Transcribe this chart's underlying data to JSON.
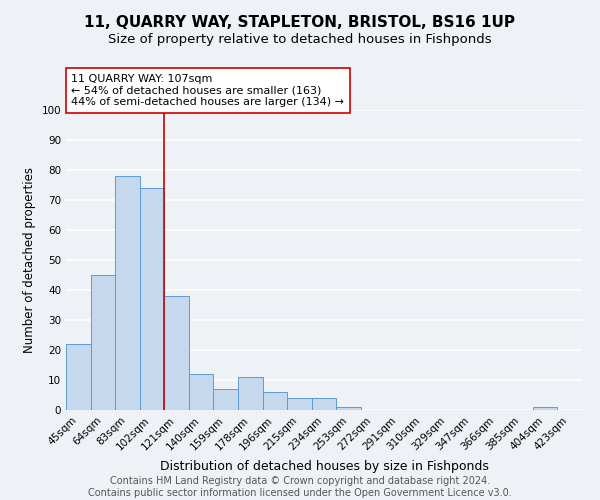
{
  "title1": "11, QUARRY WAY, STAPLETON, BRISTOL, BS16 1UP",
  "title2": "Size of property relative to detached houses in Fishponds",
  "xlabel": "Distribution of detached houses by size in Fishponds",
  "ylabel": "Number of detached properties",
  "bar_values": [
    22,
    45,
    78,
    74,
    38,
    12,
    7,
    11,
    6,
    4,
    4,
    1,
    0,
    0,
    0,
    0,
    0,
    0,
    0,
    1,
    0
  ],
  "bar_labels": [
    "45sqm",
    "64sqm",
    "83sqm",
    "102sqm",
    "121sqm",
    "140sqm",
    "159sqm",
    "178sqm",
    "196sqm",
    "215sqm",
    "234sqm",
    "253sqm",
    "272sqm",
    "291sqm",
    "310sqm",
    "329sqm",
    "347sqm",
    "366sqm",
    "385sqm",
    "404sqm",
    "423sqm"
  ],
  "bar_color": "#c5d8ed",
  "bar_edge_color": "#5b9bd5",
  "vline_index": 3,
  "vertical_line_color": "#cc0000",
  "annotation_line1": "11 QUARRY WAY: 107sqm",
  "annotation_line2": "← 54% of detached houses are smaller (163)",
  "annotation_line3": "44% of semi-detached houses are larger (134) →",
  "annotation_box_color": "white",
  "annotation_box_edge_color": "#cc0000",
  "ylim": [
    0,
    100
  ],
  "yticks": [
    0,
    10,
    20,
    30,
    40,
    50,
    60,
    70,
    80,
    90,
    100
  ],
  "footer_text": "Contains HM Land Registry data © Crown copyright and database right 2024.\nContains public sector information licensed under the Open Government Licence v3.0.",
  "background_color": "#eef2f7",
  "grid_color": "white",
  "title1_fontsize": 11,
  "title2_fontsize": 9.5,
  "xlabel_fontsize": 9,
  "ylabel_fontsize": 8.5,
  "tick_fontsize": 7.5,
  "annotation_fontsize": 8,
  "footer_fontsize": 7
}
